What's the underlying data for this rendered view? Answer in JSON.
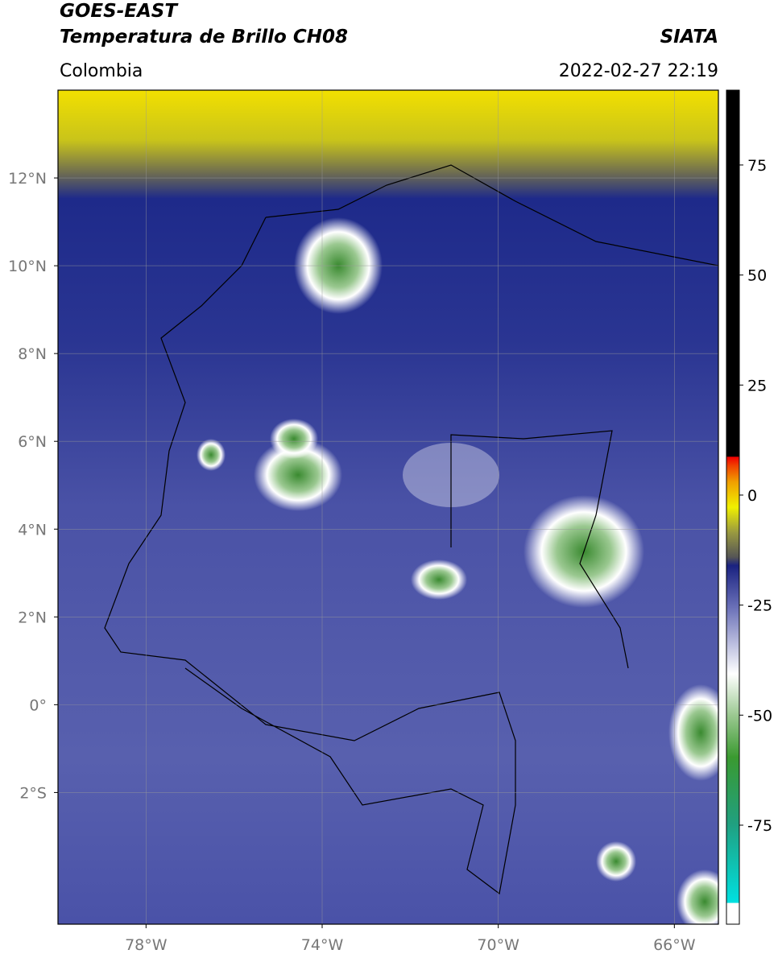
{
  "header": {
    "title": "GOES-EAST",
    "subtitle": "Temperatura de Brillo CH08",
    "source": "SIATA",
    "region": "Colombia",
    "datetime": "2022-02-27 22:19"
  },
  "map": {
    "xlim": [
      -80,
      -65
    ],
    "ylim": [
      -5,
      14
    ],
    "xticks": [
      {
        "value": -78,
        "label": "78°W"
      },
      {
        "value": -74,
        "label": "74°W"
      },
      {
        "value": -70,
        "label": "70°W"
      },
      {
        "value": -66,
        "label": "66°W"
      }
    ],
    "yticks": [
      {
        "value": 12,
        "label": "12°N"
      },
      {
        "value": 10,
        "label": "10°N"
      },
      {
        "value": 8,
        "label": "8°N"
      },
      {
        "value": 6,
        "label": "6°N"
      },
      {
        "value": 4,
        "label": "4°N"
      },
      {
        "value": 2,
        "label": "2°N"
      },
      {
        "value": 0,
        "label": "0°"
      },
      {
        "value": -2,
        "label": "2°S"
      }
    ],
    "grid": true
  },
  "colorbar": {
    "lim": [
      -97.5,
      92
    ],
    "ticks": [
      75,
      50,
      25,
      0,
      -25,
      -50,
      -75
    ]
  }
}
